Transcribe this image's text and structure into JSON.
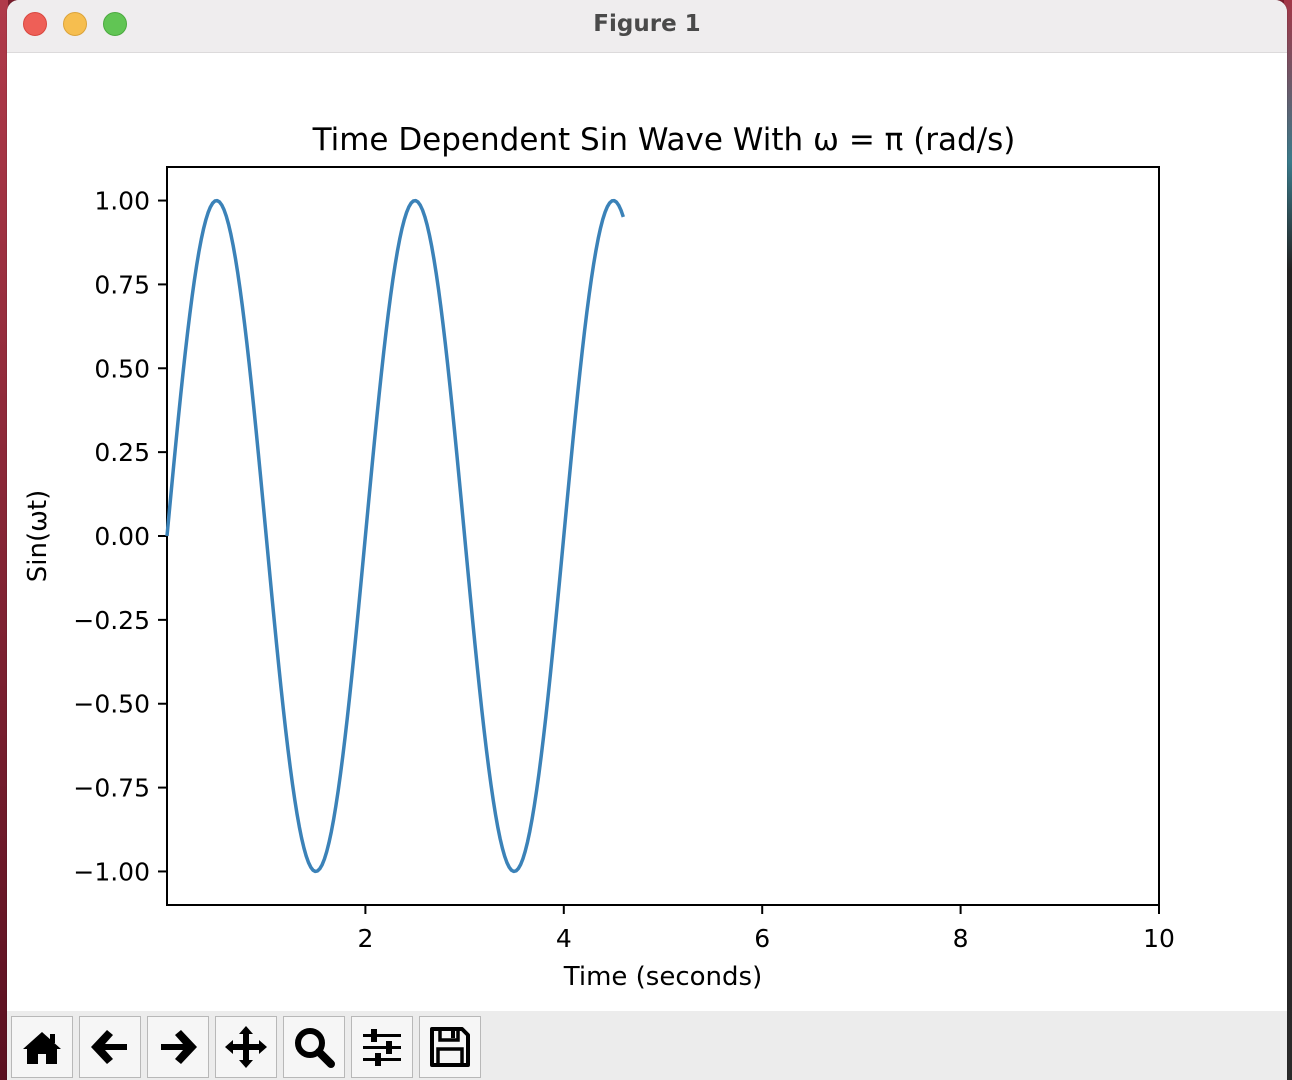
{
  "window": {
    "title": "Figure 1"
  },
  "toolbar": {
    "buttons": [
      {
        "name": "home-button",
        "icon": "home-icon"
      },
      {
        "name": "back-button",
        "icon": "arrow-left-icon"
      },
      {
        "name": "forward-button",
        "icon": "arrow-right-icon"
      },
      {
        "name": "pan-button",
        "icon": "move-icon"
      },
      {
        "name": "zoom-button",
        "icon": "magnifier-icon"
      },
      {
        "name": "configure-subplots-button",
        "icon": "sliders-icon"
      },
      {
        "name": "save-button",
        "icon": "floppy-disk-icon"
      }
    ]
  },
  "chart_data": {
    "type": "line",
    "title": "Time Dependent Sin Wave With ω = π (rad/s)",
    "xlabel": "Time (seconds)",
    "ylabel": "Sin(ωt)",
    "xlim": [
      0,
      10
    ],
    "ylim": [
      -1.1,
      1.1
    ],
    "xticks": [
      2,
      4,
      6,
      8,
      10
    ],
    "xtick_labels": [
      "2",
      "4",
      "6",
      "8",
      "10"
    ],
    "yticks": [
      1.0,
      0.75,
      0.5,
      0.25,
      0.0,
      -0.25,
      -0.5,
      -0.75,
      -1.0
    ],
    "ytick_labels": [
      "1.00",
      "0.75",
      "0.50",
      "0.25",
      "0.00",
      "−0.25",
      "−0.50",
      "−0.75",
      "−1.00"
    ],
    "grid": false,
    "series": [
      {
        "color": "#3b82b8",
        "function": "sin(πt)",
        "x_range": [
          0,
          4.6
        ],
        "x": [
          0,
          0.5,
          1.0,
          1.5,
          2.0,
          2.5,
          3.0,
          3.5,
          4.0,
          4.5,
          4.6
        ],
        "y": [
          0,
          1,
          0,
          -1,
          0,
          1,
          0,
          -1,
          0,
          1,
          0.95
        ]
      }
    ]
  }
}
